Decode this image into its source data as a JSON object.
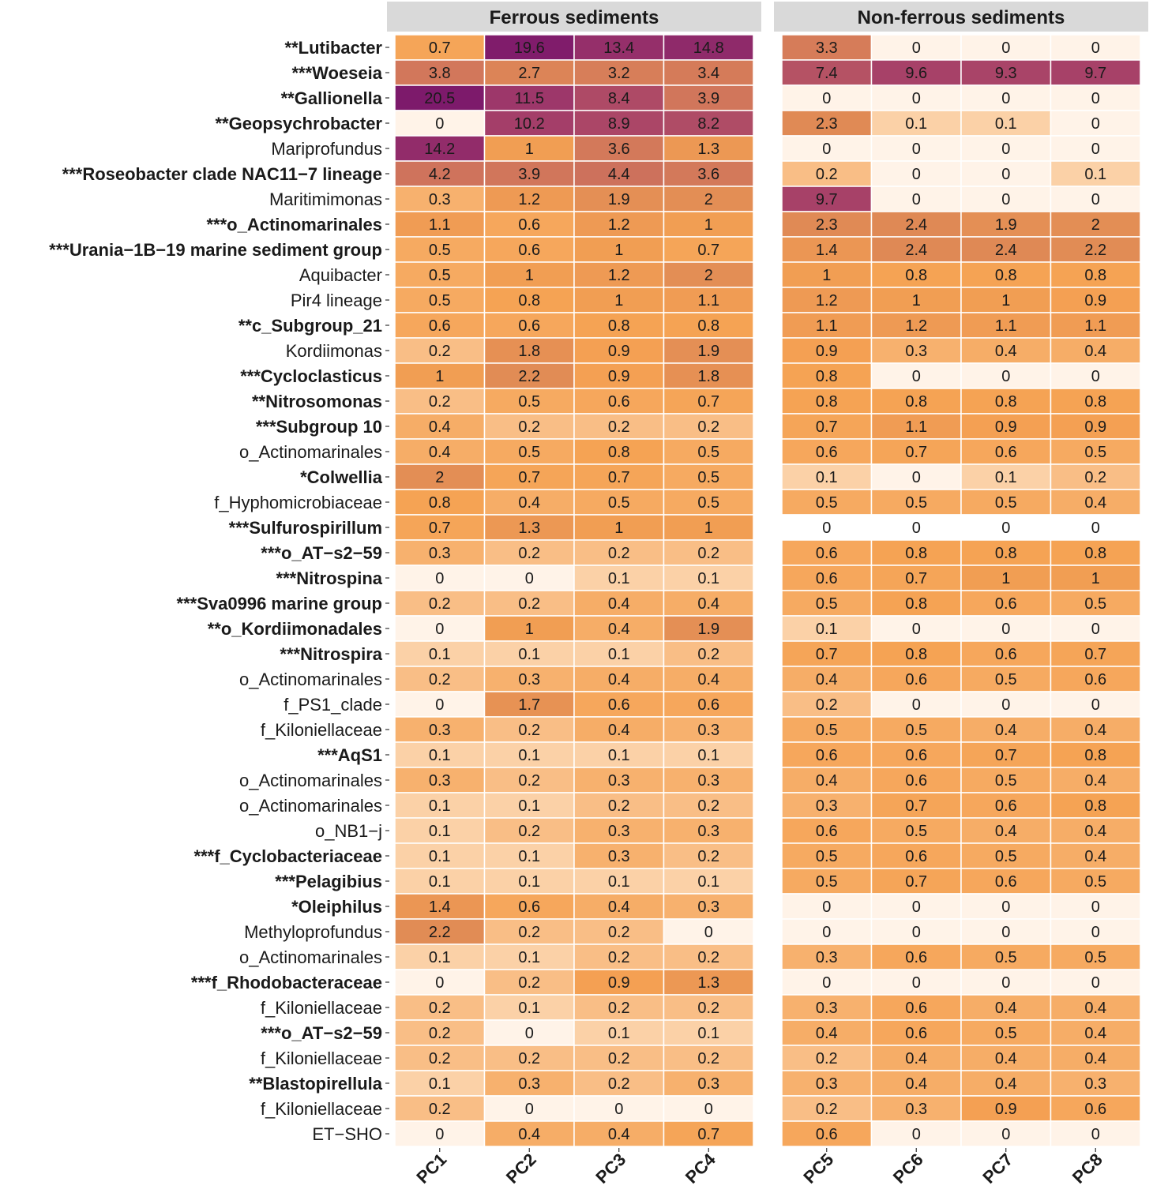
{
  "chart_data": {
    "type": "heatmap",
    "panels": [
      {
        "title": "Ferrous sediments",
        "columns": [
          "PC1",
          "PC2",
          "PC3",
          "PC4"
        ]
      },
      {
        "title": "Non-ferrous sediments",
        "columns": [
          "PC5",
          "PC6",
          "PC7",
          "PC8"
        ]
      }
    ],
    "rows": [
      {
        "label": "**Lutibacter",
        "bold": true,
        "values": [
          0.7,
          19.6,
          13.4,
          14.8,
          3.3,
          0,
          0,
          0
        ]
      },
      {
        "label": "***Woeseia",
        "bold": true,
        "values": [
          3.8,
          2.7,
          3.2,
          3.4,
          7.4,
          9.6,
          9.3,
          9.7
        ]
      },
      {
        "label": "**Gallionella",
        "bold": true,
        "values": [
          20.5,
          11.5,
          8.4,
          3.9,
          0,
          0,
          0,
          0
        ]
      },
      {
        "label": "**Geopsychrobacter",
        "bold": true,
        "values": [
          0,
          10.2,
          8.9,
          8.2,
          2.3,
          0.1,
          0.1,
          0
        ]
      },
      {
        "label": "Mariprofundus",
        "bold": false,
        "values": [
          14.2,
          1,
          3.6,
          1.3,
          0,
          0,
          0,
          0
        ]
      },
      {
        "label": "***Roseobacter clade NAC11−7 lineage",
        "bold": true,
        "values": [
          4.2,
          3.9,
          4.4,
          3.6,
          0.2,
          0,
          0,
          0.1
        ]
      },
      {
        "label": "Maritimimonas",
        "bold": false,
        "values": [
          0.3,
          1.2,
          1.9,
          2,
          9.7,
          0,
          0,
          0
        ]
      },
      {
        "label": "***o_Actinomarinales",
        "bold": true,
        "values": [
          1.1,
          0.6,
          1.2,
          1,
          2.3,
          2.4,
          1.9,
          2
        ]
      },
      {
        "label": "***Urania−1B−19 marine sediment group",
        "bold": true,
        "values": [
          0.5,
          0.6,
          1,
          0.7,
          1.4,
          2.4,
          2.4,
          2.2
        ]
      },
      {
        "label": "Aquibacter",
        "bold": false,
        "values": [
          0.5,
          1,
          1.2,
          2,
          1,
          0.8,
          0.8,
          0.8
        ]
      },
      {
        "label": "Pir4 lineage",
        "bold": false,
        "values": [
          0.5,
          0.8,
          1,
          1.1,
          1.2,
          1,
          1,
          0.9
        ]
      },
      {
        "label": "**c_Subgroup_21",
        "bold": true,
        "values": [
          0.6,
          0.6,
          0.8,
          0.8,
          1.1,
          1.2,
          1.1,
          1.1
        ]
      },
      {
        "label": "Kordiimonas",
        "bold": false,
        "values": [
          0.2,
          1.8,
          0.9,
          1.9,
          0.9,
          0.3,
          0.4,
          0.4
        ]
      },
      {
        "label": "***Cycloclasticus",
        "bold": true,
        "values": [
          1,
          2.2,
          0.9,
          1.8,
          0.8,
          0,
          0,
          0
        ]
      },
      {
        "label": "**Nitrosomonas",
        "bold": true,
        "values": [
          0.2,
          0.5,
          0.6,
          0.7,
          0.8,
          0.8,
          0.8,
          0.8
        ]
      },
      {
        "label": "***Subgroup 10",
        "bold": true,
        "values": [
          0.4,
          0.2,
          0.2,
          0.2,
          0.7,
          1.1,
          0.9,
          0.9
        ]
      },
      {
        "label": "o_Actinomarinales",
        "bold": false,
        "values": [
          0.4,
          0.5,
          0.8,
          0.5,
          0.6,
          0.7,
          0.6,
          0.5
        ]
      },
      {
        "label": "*Colwellia",
        "bold": true,
        "values": [
          2,
          0.7,
          0.7,
          0.5,
          0.1,
          0,
          0.1,
          0.2
        ]
      },
      {
        "label": "f_Hyphomicrobiaceae",
        "bold": false,
        "values": [
          0.8,
          0.4,
          0.5,
          0.5,
          0.5,
          0.5,
          0.5,
          0.4
        ]
      },
      {
        "label": "***Sulfurospirillum",
        "bold": true,
        "values": [
          0.7,
          1.3,
          1,
          1,
          0,
          0,
          0,
          0
        ]
      },
      {
        "label": "***o_AT−s2−59",
        "bold": true,
        "values": [
          0.3,
          0.2,
          0.2,
          0.2,
          0.6,
          0.8,
          0.8,
          0.8
        ]
      },
      {
        "label": "***Nitrospina",
        "bold": true,
        "values": [
          0,
          0,
          0.1,
          0.1,
          0.6,
          0.7,
          1,
          1
        ]
      },
      {
        "label": "***Sva0996 marine group",
        "bold": true,
        "values": [
          0.2,
          0.2,
          0.4,
          0.4,
          0.5,
          0.8,
          0.6,
          0.5
        ]
      },
      {
        "label": "**o_Kordiimonadales",
        "bold": true,
        "values": [
          0,
          1,
          0.4,
          1.9,
          0.1,
          0,
          0,
          0
        ]
      },
      {
        "label": "***Nitrospira",
        "bold": true,
        "values": [
          0.1,
          0.1,
          0.1,
          0.2,
          0.7,
          0.8,
          0.6,
          0.7
        ]
      },
      {
        "label": "o_Actinomarinales",
        "bold": false,
        "values": [
          0.2,
          0.3,
          0.4,
          0.4,
          0.4,
          0.6,
          0.5,
          0.6
        ]
      },
      {
        "label": "f_PS1_clade",
        "bold": false,
        "values": [
          0,
          1.7,
          0.6,
          0.6,
          0.2,
          0,
          0,
          0
        ]
      },
      {
        "label": "f_Kiloniellaceae",
        "bold": false,
        "values": [
          0.3,
          0.2,
          0.4,
          0.3,
          0.5,
          0.5,
          0.4,
          0.4
        ]
      },
      {
        "label": "***AqS1",
        "bold": true,
        "values": [
          0.1,
          0.1,
          0.1,
          0.1,
          0.6,
          0.6,
          0.7,
          0.8
        ]
      },
      {
        "label": "o_Actinomarinales",
        "bold": false,
        "values": [
          0.3,
          0.2,
          0.3,
          0.3,
          0.4,
          0.6,
          0.5,
          0.4
        ]
      },
      {
        "label": "o_Actinomarinales",
        "bold": false,
        "values": [
          0.1,
          0.1,
          0.2,
          0.2,
          0.3,
          0.7,
          0.6,
          0.8
        ]
      },
      {
        "label": "o_NB1−j",
        "bold": false,
        "values": [
          0.1,
          0.2,
          0.3,
          0.3,
          0.6,
          0.5,
          0.4,
          0.4
        ]
      },
      {
        "label": "***f_Cyclobacteriaceae",
        "bold": true,
        "values": [
          0.1,
          0.1,
          0.3,
          0.2,
          0.5,
          0.6,
          0.5,
          0.4
        ]
      },
      {
        "label": "***Pelagibius",
        "bold": true,
        "values": [
          0.1,
          0.1,
          0.1,
          0.1,
          0.5,
          0.7,
          0.6,
          0.5
        ]
      },
      {
        "label": "*Oleiphilus",
        "bold": true,
        "values": [
          1.4,
          0.6,
          0.4,
          0.3,
          0,
          0,
          0,
          0
        ]
      },
      {
        "label": "Methyloprofundus",
        "bold": false,
        "values": [
          2.2,
          0.2,
          0.2,
          0,
          0,
          0,
          0,
          0
        ]
      },
      {
        "label": "o_Actinomarinales",
        "bold": false,
        "values": [
          0.1,
          0.1,
          0.2,
          0.2,
          0.3,
          0.6,
          0.5,
          0.5
        ]
      },
      {
        "label": "***f_Rhodobacteraceae",
        "bold": true,
        "values": [
          0,
          0.2,
          0.9,
          1.3,
          0,
          0,
          0,
          0
        ]
      },
      {
        "label": "f_Kiloniellaceae",
        "bold": false,
        "values": [
          0.2,
          0.1,
          0.2,
          0.2,
          0.3,
          0.6,
          0.4,
          0.4
        ]
      },
      {
        "label": "***o_AT−s2−59",
        "bold": true,
        "values": [
          0.2,
          0,
          0.1,
          0.1,
          0.4,
          0.6,
          0.5,
          0.4
        ]
      },
      {
        "label": "f_Kiloniellaceae",
        "bold": false,
        "values": [
          0.2,
          0.2,
          0.2,
          0.2,
          0.2,
          0.4,
          0.4,
          0.4
        ]
      },
      {
        "label": "**Blastopirellula",
        "bold": true,
        "values": [
          0.1,
          0.3,
          0.2,
          0.3,
          0.3,
          0.4,
          0.4,
          0.3
        ]
      },
      {
        "label": "f_Kiloniellaceae",
        "bold": false,
        "values": [
          0.2,
          0,
          0,
          0,
          0.2,
          0.3,
          0.9,
          0.6
        ]
      },
      {
        "label": "ET−SHO",
        "bold": false,
        "values": [
          0,
          0.4,
          0.4,
          0.7,
          0.6,
          0,
          0,
          0
        ]
      }
    ],
    "colors": {
      "empty": "#ffffff",
      "low": "#fde2c6",
      "mid": "#f5a253",
      "midhigh": "#c96b5e",
      "high": "#a13a6a",
      "max": "#7d1a6b",
      "strip": "#d9d9d9",
      "text": "#1a1a1a"
    }
  }
}
